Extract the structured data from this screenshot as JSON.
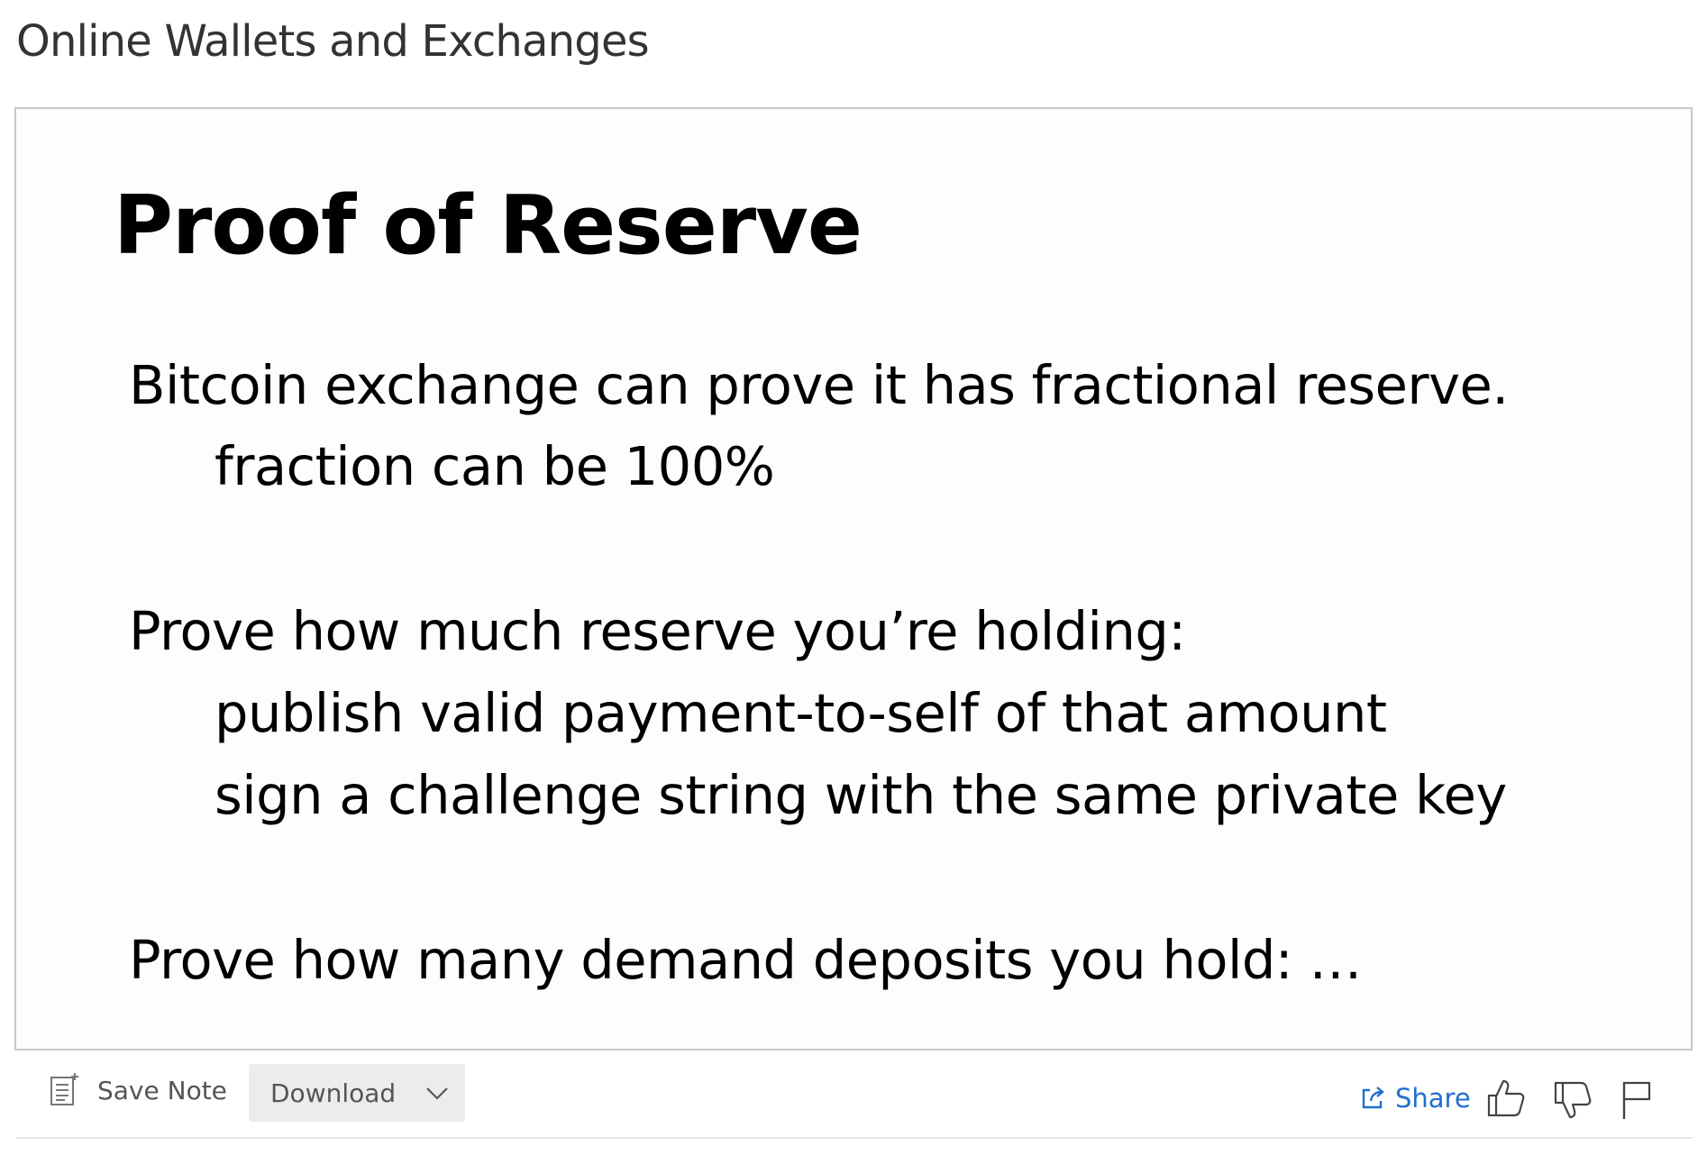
{
  "page": {
    "title": "Online Wallets and Exchanges"
  },
  "slide": {
    "title": "Proof of Reserve",
    "lines": [
      "Bitcoin exchange can prove it has fractional reserve.",
      "fraction can be 100%",
      "Prove how much reserve you’re holding:",
      "publish valid payment-to-self of that amount",
      "sign a challenge string with the same private key",
      "Prove how many demand deposits you hold: …"
    ]
  },
  "toolbar": {
    "save_note_label": "Save Note",
    "save_note_icon": "note-icon",
    "download_label": "Download",
    "download_icon": "chevron-down-icon",
    "share_label": "Share",
    "share_icon": "share-icon",
    "like_icon": "thumbs-up-icon",
    "dislike_icon": "thumbs-down-icon",
    "flag_icon": "flag-icon",
    "accent_color": "#1f6fd1"
  }
}
